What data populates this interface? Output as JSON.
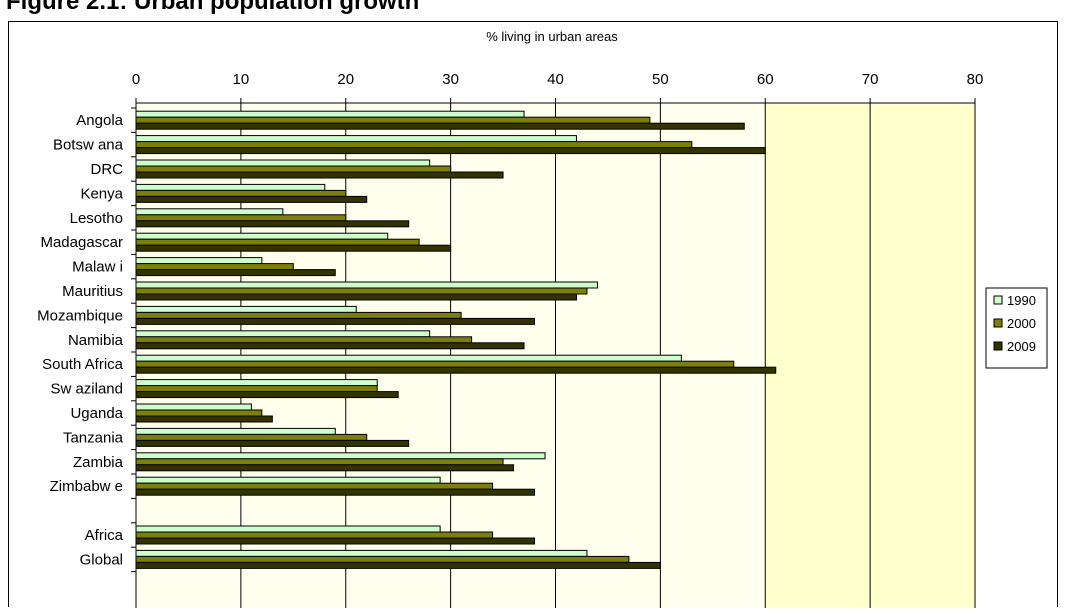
{
  "page": {
    "title": "Figure 2.1: Urban population growth"
  },
  "chart_data": {
    "type": "bar",
    "orientation": "horizontal",
    "title": "% living in urban areas",
    "xlabel": "% living in urban areas",
    "ylabel": "",
    "xlim": [
      0,
      80
    ],
    "x_ticks": [
      0,
      10,
      20,
      30,
      40,
      50,
      60,
      70,
      80
    ],
    "x_axis_position": "top",
    "grid": true,
    "legend_position": "right",
    "categories": [
      "Angola",
      "Botsw ana",
      "DRC",
      "Kenya",
      "Lesotho",
      "Madagascar",
      "Malaw i",
      "Mauritius",
      "Mozambique",
      "Namibia",
      "South Africa",
      "Sw aziland",
      "Uganda",
      "Tanzania",
      "Zambia",
      "Zimbabw e",
      "",
      "Africa",
      "Global"
    ],
    "series": [
      {
        "name": "1990",
        "color": "#ccffcc",
        "values": [
          37,
          42,
          28,
          18,
          14,
          24,
          12,
          44,
          21,
          28,
          52,
          23,
          11,
          19,
          39,
          29,
          null,
          29,
          43
        ]
      },
      {
        "name": "2000",
        "color": "#808000",
        "values": [
          49,
          53,
          30,
          20,
          20,
          27,
          15,
          43,
          31,
          32,
          57,
          23,
          12,
          22,
          35,
          34,
          null,
          34,
          47
        ]
      },
      {
        "name": "2009",
        "color": "#333300",
        "values": [
          58,
          60,
          35,
          22,
          26,
          30,
          19,
          42,
          38,
          37,
          61,
          25,
          13,
          26,
          36,
          38,
          null,
          38,
          50
        ]
      }
    ],
    "legend_labels": [
      "1990",
      "2000",
      "2009"
    ],
    "colors": {
      "plot_bg_inner": "#ffffee",
      "plot_bg_outer": "#ffffcc",
      "gridline": "#000000"
    }
  }
}
